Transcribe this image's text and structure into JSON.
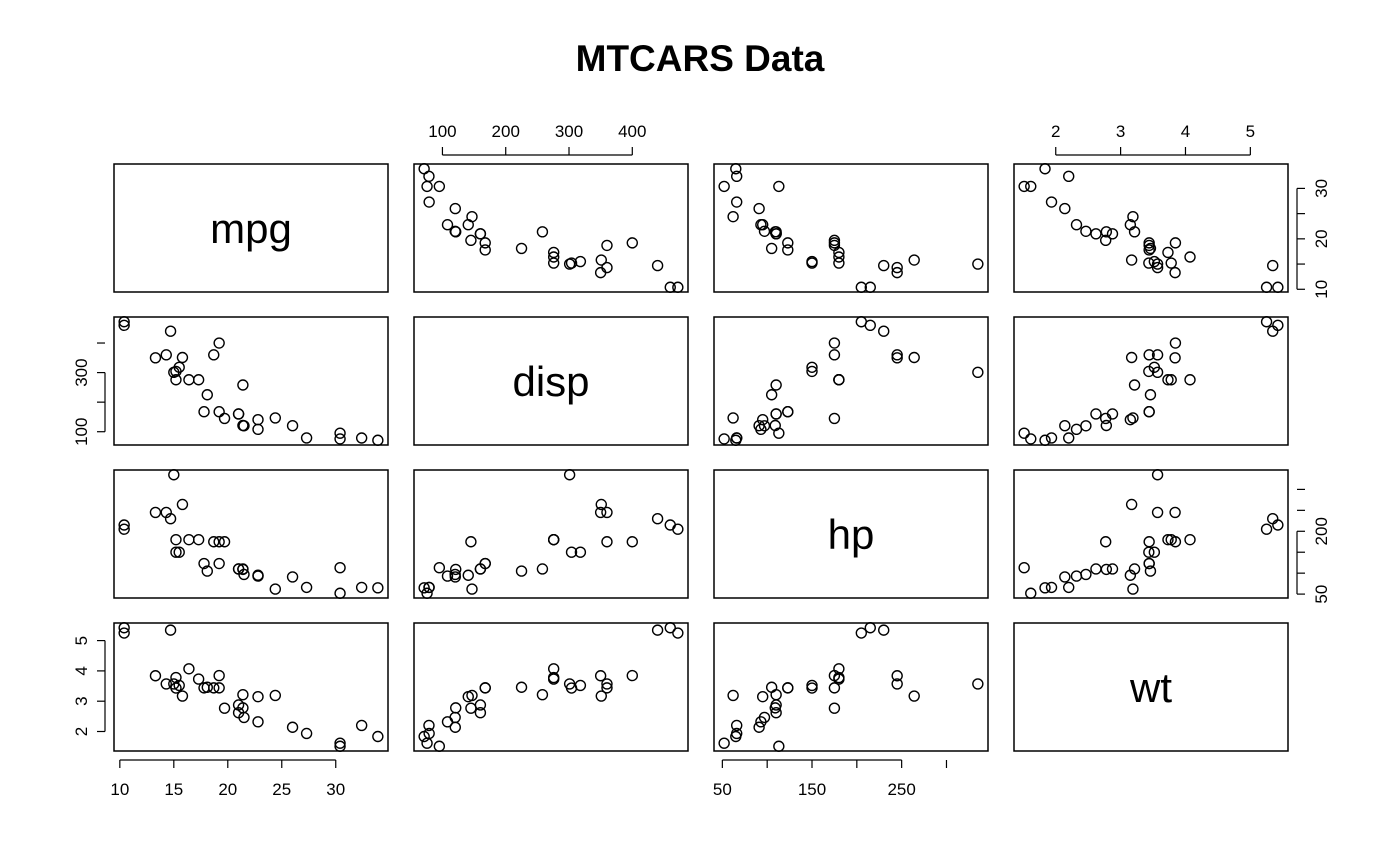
{
  "chart_data": {
    "type": "scatter",
    "title": "MTCARS Data",
    "variables": [
      "mpg",
      "disp",
      "hp",
      "wt"
    ],
    "columns": {
      "mpg": [
        21.0,
        21.0,
        22.8,
        21.4,
        18.7,
        18.1,
        14.3,
        24.4,
        22.8,
        19.2,
        17.8,
        16.4,
        17.3,
        15.2,
        10.4,
        10.4,
        14.7,
        32.4,
        30.4,
        33.9,
        21.5,
        15.5,
        15.2,
        13.3,
        19.2,
        27.3,
        26.0,
        30.4,
        15.8,
        19.7,
        15.0,
        21.4
      ],
      "disp": [
        160,
        160,
        108,
        258,
        360,
        225,
        360,
        146.7,
        140.8,
        167.6,
        167.6,
        275.8,
        275.8,
        275.8,
        472,
        460,
        440,
        78.7,
        75.7,
        71.1,
        120.1,
        318,
        304,
        350,
        400,
        79,
        120.3,
        95.1,
        351,
        145,
        301,
        121
      ],
      "hp": [
        110,
        110,
        93,
        110,
        175,
        105,
        245,
        62,
        95,
        123,
        123,
        180,
        180,
        180,
        205,
        215,
        230,
        66,
        52,
        65,
        97,
        150,
        150,
        245,
        175,
        66,
        91,
        113,
        264,
        175,
        335,
        109
      ],
      "wt": [
        2.62,
        2.875,
        2.32,
        3.215,
        3.44,
        3.46,
        3.57,
        3.19,
        3.15,
        3.44,
        3.44,
        4.07,
        3.73,
        3.78,
        5.25,
        5.424,
        5.345,
        2.2,
        1.615,
        1.835,
        2.465,
        3.52,
        3.435,
        3.84,
        3.845,
        1.935,
        2.14,
        1.513,
        3.17,
        2.77,
        3.57,
        2.78
      ]
    },
    "axes": {
      "mpg": {
        "range": [
          10.4,
          33.9
        ],
        "ticks": [
          10,
          15,
          20,
          25,
          30
        ],
        "tick_side": "bottom"
      },
      "disp": {
        "range": [
          71.1,
          472
        ],
        "ticks": [
          100,
          200,
          300,
          400
        ],
        "tick_side": "top",
        "left_ticks": [
          100,
          300
        ]
      },
      "hp": {
        "range": [
          52,
          335
        ],
        "ticks": [
          50,
          150,
          250
        ],
        "tick_side": "bottom",
        "right_ticks": [
          50,
          200
        ]
      },
      "wt": {
        "range": [
          1.513,
          5.424
        ],
        "ticks": [
          2,
          3,
          4,
          5
        ],
        "tick_side": "top",
        "left_ticks": [
          2,
          3,
          4,
          5
        ]
      }
    },
    "mpg_right_ticks": [
      10,
      20,
      30
    ],
    "grid": false,
    "legend": "none"
  }
}
